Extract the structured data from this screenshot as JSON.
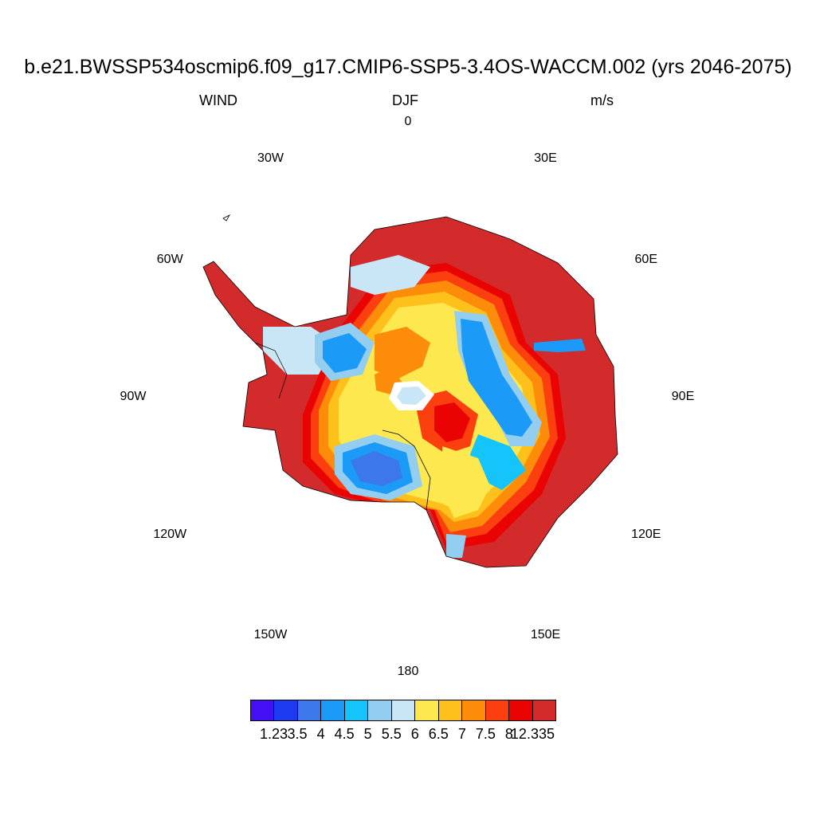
{
  "header": {
    "title": "b.e21.BWSSP534oscmip6.f09_g17.CMIP6-SSP5-3.4OS-WACCM.002 (yrs 2046-2075)",
    "variable": "WIND",
    "season": "DJF",
    "units": "m/s"
  },
  "map": {
    "projection": "south-polar-stereographic",
    "longitude_labels": [
      {
        "text": "0",
        "lon": 0
      },
      {
        "text": "30E",
        "lon": 30
      },
      {
        "text": "60E",
        "lon": 60
      },
      {
        "text": "90E",
        "lon": 90
      },
      {
        "text": "120E",
        "lon": 120
      },
      {
        "text": "150E",
        "lon": 150
      },
      {
        "text": "180",
        "lon": 180
      },
      {
        "text": "150W",
        "lon": -150
      },
      {
        "text": "120W",
        "lon": -120
      },
      {
        "text": "90W",
        "lon": -90
      },
      {
        "text": "60W",
        "lon": -60
      },
      {
        "text": "30W",
        "lon": -30
      }
    ]
  },
  "colorbar": {
    "labels": [
      "1.23",
      "3.5",
      "4",
      "4.5",
      "5",
      "5.5",
      "6",
      "6.5",
      "7",
      "7.5",
      "8",
      "12.335"
    ],
    "colors": [
      "#4410f5",
      "#1e3af0",
      "#3d77ec",
      "#1c9af7",
      "#14c4fb",
      "#93cdef",
      "#c9e6f6",
      "#fde94f",
      "#fec01b",
      "#fe8c0b",
      "#fb3f0e",
      "#e90303",
      "#d32b2b"
    ]
  }
}
